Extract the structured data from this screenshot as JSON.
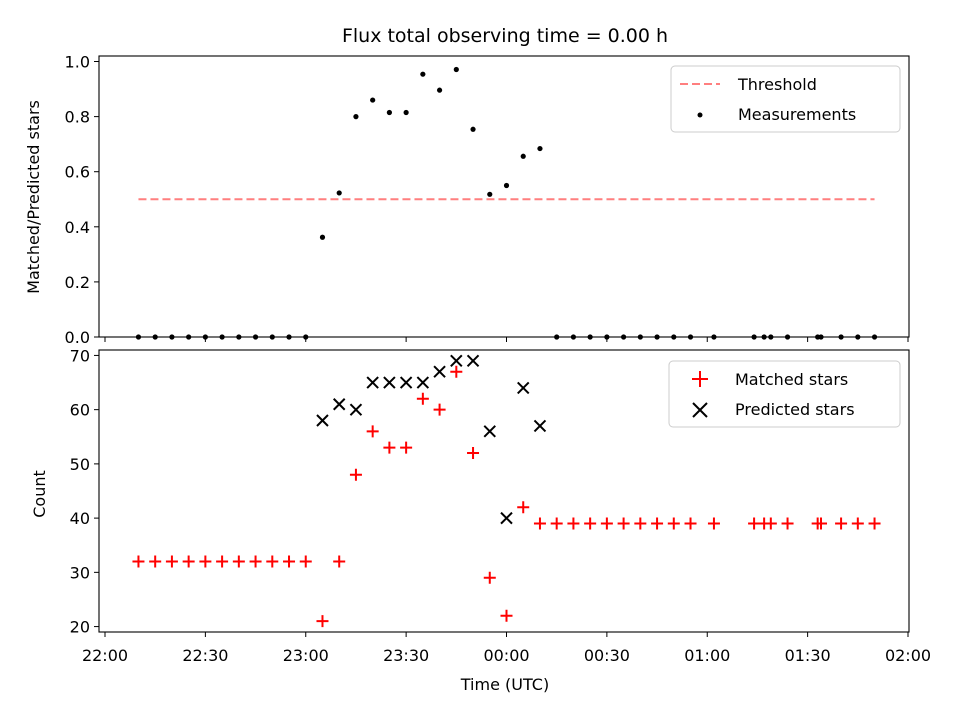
{
  "chart_data": [
    {
      "type": "scatter",
      "title": "Flux total observing time = 0.00 h",
      "xlabel": "",
      "ylabel": "Matched/Predicted stars",
      "ylim": [
        0,
        1.02
      ],
      "yticks": [
        "0.0",
        "0.2",
        "0.4",
        "0.6",
        "0.8",
        "1.0"
      ],
      "threshold": {
        "name": "Threshold",
        "value": 0.5,
        "x_start": "22:10",
        "x_end": "01:50",
        "color": "#ff7f7f"
      },
      "series": [
        {
          "name": "Measurements",
          "color": "#000000",
          "points": [
            [
              "22:10",
              0
            ],
            [
              "22:15",
              0
            ],
            [
              "22:20",
              0
            ],
            [
              "22:25",
              0
            ],
            [
              "22:30",
              0
            ],
            [
              "22:35",
              0
            ],
            [
              "22:40",
              0
            ],
            [
              "22:45",
              0
            ],
            [
              "22:50",
              0
            ],
            [
              "22:55",
              0
            ],
            [
              "23:00",
              0
            ],
            [
              "23:05",
              0.362
            ],
            [
              "23:10",
              0.523
            ],
            [
              "23:15",
              0.8
            ],
            [
              "23:20",
              0.86
            ],
            [
              "23:25",
              0.815
            ],
            [
              "23:30",
              0.815
            ],
            [
              "23:35",
              0.954
            ],
            [
              "23:40",
              0.896
            ],
            [
              "23:45",
              0.971
            ],
            [
              "23:50",
              0.754
            ],
            [
              "23:55",
              0.518
            ],
            [
              "00:00",
              0.55
            ],
            [
              "00:05",
              0.656
            ],
            [
              "00:10",
              0.684
            ],
            [
              "00:15",
              0
            ],
            [
              "00:20",
              0
            ],
            [
              "00:25",
              0
            ],
            [
              "00:30",
              0
            ],
            [
              "00:35",
              0
            ],
            [
              "00:40",
              0
            ],
            [
              "00:45",
              0
            ],
            [
              "00:50",
              0
            ],
            [
              "00:55",
              0
            ],
            [
              "01:02",
              0
            ],
            [
              "01:14",
              0
            ],
            [
              "01:17",
              0
            ],
            [
              "01:19",
              0
            ],
            [
              "01:24",
              0
            ],
            [
              "01:33",
              0
            ],
            [
              "01:34",
              0
            ],
            [
              "01:40",
              0
            ],
            [
              "01:45",
              0
            ],
            [
              "01:50",
              0
            ]
          ]
        }
      ],
      "legend_position": "top-right",
      "grid": false
    },
    {
      "type": "scatter",
      "title": "",
      "xlabel": "Time (UTC)",
      "ylabel": "Count",
      "ylim": [
        19,
        71
      ],
      "yticks": [
        "20",
        "30",
        "40",
        "50",
        "60",
        "70"
      ],
      "xlim": [
        "22:00",
        "02:00"
      ],
      "xticks": [
        "22:00",
        "22:30",
        "23:00",
        "23:30",
        "00:00",
        "00:30",
        "01:00",
        "01:30",
        "02:00"
      ],
      "series": [
        {
          "name": "Matched stars",
          "marker": "plus",
          "color": "#ff0000",
          "points": [
            [
              "22:10",
              32
            ],
            [
              "22:15",
              32
            ],
            [
              "22:20",
              32
            ],
            [
              "22:25",
              32
            ],
            [
              "22:30",
              32
            ],
            [
              "22:35",
              32
            ],
            [
              "22:40",
              32
            ],
            [
              "22:45",
              32
            ],
            [
              "22:50",
              32
            ],
            [
              "22:55",
              32
            ],
            [
              "23:00",
              32
            ],
            [
              "23:05",
              21
            ],
            [
              "23:10",
              32
            ],
            [
              "23:15",
              48
            ],
            [
              "23:20",
              56
            ],
            [
              "23:25",
              53
            ],
            [
              "23:30",
              53
            ],
            [
              "23:35",
              62
            ],
            [
              "23:40",
              60
            ],
            [
              "23:45",
              67
            ],
            [
              "23:50",
              52
            ],
            [
              "23:55",
              29
            ],
            [
              "00:00",
              22
            ],
            [
              "00:05",
              42
            ],
            [
              "00:10",
              39
            ],
            [
              "00:15",
              39
            ],
            [
              "00:20",
              39
            ],
            [
              "00:25",
              39
            ],
            [
              "00:30",
              39
            ],
            [
              "00:35",
              39
            ],
            [
              "00:40",
              39
            ],
            [
              "00:45",
              39
            ],
            [
              "00:50",
              39
            ],
            [
              "00:55",
              39
            ],
            [
              "01:02",
              39
            ],
            [
              "01:14",
              39
            ],
            [
              "01:17",
              39
            ],
            [
              "01:19",
              39
            ],
            [
              "01:24",
              39
            ],
            [
              "01:33",
              39
            ],
            [
              "01:34",
              39
            ],
            [
              "01:40",
              39
            ],
            [
              "01:45",
              39
            ],
            [
              "01:50",
              39
            ]
          ]
        },
        {
          "name": "Predicted stars",
          "marker": "x",
          "color": "#000000",
          "points": [
            [
              "23:05",
              58
            ],
            [
              "23:10",
              61
            ],
            [
              "23:15",
              60
            ],
            [
              "23:20",
              65
            ],
            [
              "23:25",
              65
            ],
            [
              "23:30",
              65
            ],
            [
              "23:35",
              65
            ],
            [
              "23:40",
              67
            ],
            [
              "23:45",
              69
            ],
            [
              "23:50",
              69
            ],
            [
              "23:55",
              56
            ],
            [
              "00:00",
              40
            ],
            [
              "00:05",
              64
            ],
            [
              "00:10",
              57
            ]
          ]
        }
      ],
      "legend_position": "top-right",
      "grid": false
    }
  ]
}
